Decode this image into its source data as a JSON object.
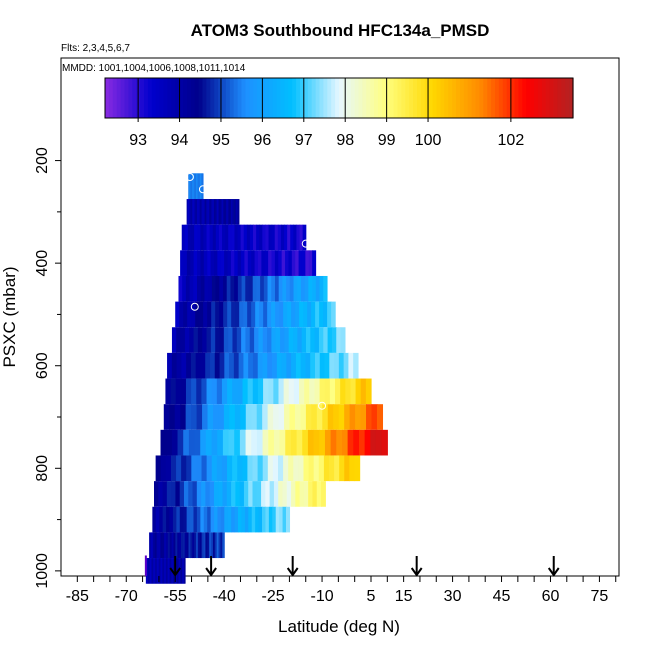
{
  "chart_data": {
    "type": "heatmap",
    "title": "ATOM3 Southbound HFC134a_PMSD",
    "flights_label": "Flts: 2,3,4,5,6,7",
    "dates_label": "MMDD: 1001,1004,1006,1008,1011,1014",
    "xlabel": "Latitude (deg N)",
    "ylabel": "PSXC (mbar)",
    "xlim": [
      -90,
      81
    ],
    "ylim": [
      1010,
      0
    ],
    "x_ticks": [
      -85,
      -70,
      -55,
      -40,
      -25,
      -10,
      5,
      15,
      30,
      45,
      60,
      75
    ],
    "x_ticks_labels": [
      "-85",
      "-70",
      "-55",
      "-40",
      "-25",
      "-10",
      "5",
      "15",
      "30",
      "45",
      "60",
      "75"
    ],
    "y_ticks": [
      200,
      400,
      600,
      800,
      1000
    ],
    "y_ticks_labels": [
      "200",
      "400",
      "600",
      "800",
      "1000"
    ],
    "colorbar": {
      "vmin": 92.2,
      "vmax": 103.5,
      "ticks": [
        93,
        94,
        95,
        96,
        97,
        98,
        99,
        100,
        102
      ],
      "ticks_labels": [
        "93",
        "94",
        "95",
        "96",
        "97",
        "98",
        "99",
        "100",
        "102"
      ],
      "colors": [
        "#8a2be2",
        "#0000cd",
        "#00008b",
        "#1e90ff",
        "#00bfff",
        "#e6f7ff",
        "#ffff80",
        "#ffd700",
        "#ff8c00",
        "#ff0000",
        "#b22222"
      ]
    },
    "bands": [
      {
        "p": 250,
        "x0": -51,
        "x1": -46.5,
        "c0": 95.5,
        "c1": 95.5
      },
      {
        "p": 300,
        "x0": -51.5,
        "x1": -35.5,
        "c0": 93.8,
        "c1": 94.2
      },
      {
        "p": 350,
        "x0": -53,
        "x1": -15,
        "c0": 93.7,
        "c1": 93.2
      },
      {
        "p": 400,
        "x0": -53.5,
        "x1": -12,
        "c0": 93.8,
        "c1": 93.0
      },
      {
        "p": 450,
        "x0": -54,
        "x1": -8.5,
        "c0": 93.5,
        "c1": 96.5
      },
      {
        "p": 500,
        "x0": -55,
        "x1": -6,
        "c0": 93.7,
        "c1": 97.0
      },
      {
        "p": 550,
        "x0": -56,
        "x1": -3,
        "c0": 93.8,
        "c1": 97.3
      },
      {
        "p": 600,
        "x0": -57.5,
        "x1": 1,
        "c0": 93.8,
        "c1": 97.6
      },
      {
        "p": 650,
        "x0": -58,
        "x1": 5,
        "c0": 94.0,
        "c1": 100.5
      },
      {
        "p": 700,
        "x0": -58.5,
        "x1": 8.5,
        "c0": 93.9,
        "c1": 102.0
      },
      {
        "p": 750,
        "x0": -59.5,
        "x1": 10,
        "c0": 94.0,
        "c1": 103.3
      },
      {
        "p": 800,
        "x0": -61,
        "x1": 1.5,
        "c0": 94.0,
        "c1": 100.5
      },
      {
        "p": 850,
        "x0": -61.5,
        "x1": -9,
        "c0": 94.0,
        "c1": 99.5
      },
      {
        "p": 900,
        "x0": -62,
        "x1": -20,
        "c0": 94.0,
        "c1": 97.5
      },
      {
        "p": 950,
        "x0": -63,
        "x1": -40,
        "c0": 94.0,
        "c1": 95.0
      },
      {
        "p": 1000,
        "x0": -64,
        "x1": -52,
        "c0": 93.8,
        "c1": 94.0
      }
    ],
    "sample_points": [
      {
        "x": -50.5,
        "p": 232
      },
      {
        "x": -46.5,
        "p": 256
      },
      {
        "x": -15,
        "p": 362
      },
      {
        "x": -49,
        "p": 485
      },
      {
        "x": -10,
        "p": 678
      },
      {
        "x": 14,
        "p": 711
      }
    ],
    "arrows_x": [
      -55,
      -44,
      -19,
      19,
      61
    ]
  }
}
